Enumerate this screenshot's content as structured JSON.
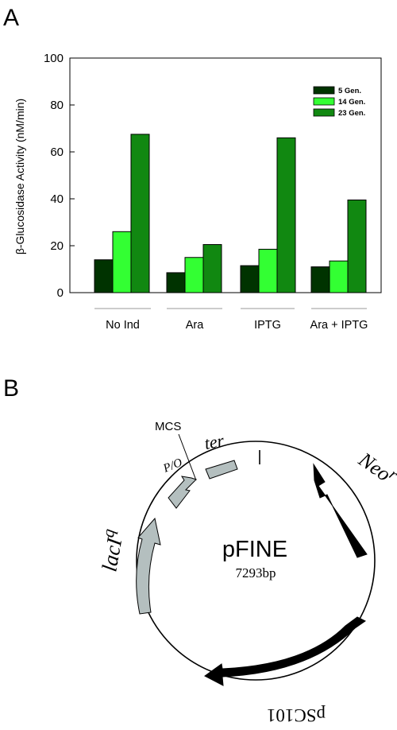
{
  "panel_a": {
    "label": "A",
    "chart_data": {
      "type": "bar",
      "categories": [
        "No Ind",
        "Ara",
        "IPTG",
        "Ara + IPTG"
      ],
      "series": [
        {
          "name": "5 Gen.",
          "color": "#003300",
          "values": [
            14,
            8.5,
            11.5,
            11
          ]
        },
        {
          "name": "14 Gen.",
          "color": "#33ff33",
          "values": [
            26,
            15,
            18.5,
            13.5
          ]
        },
        {
          "name": "23 Gen.",
          "color": "#118811",
          "values": [
            67.5,
            20.5,
            66,
            39.5
          ]
        }
      ],
      "title": "",
      "xlabel": "",
      "ylabel": "β-Glucosidase Activity   (nM/min)",
      "ylim": [
        0,
        100
      ],
      "yticks": [
        "0",
        "20",
        "40",
        "60",
        "80",
        "100"
      ],
      "grid": false,
      "legend_position": "top-right"
    }
  },
  "panel_b": {
    "label": "B",
    "plasmid_name": "pFINE",
    "plasmid_size": "7293bp",
    "features": {
      "mcs": "MCS",
      "promoter": "P/O",
      "terminator": "ter",
      "neo_base": "Neo",
      "neo_sup": "r",
      "lac_base": "lacI",
      "lac_sup": "q",
      "origin": "pSC101"
    },
    "colors": {
      "gray_feature": "#b4bfbf",
      "black_feature": "#000000"
    }
  }
}
